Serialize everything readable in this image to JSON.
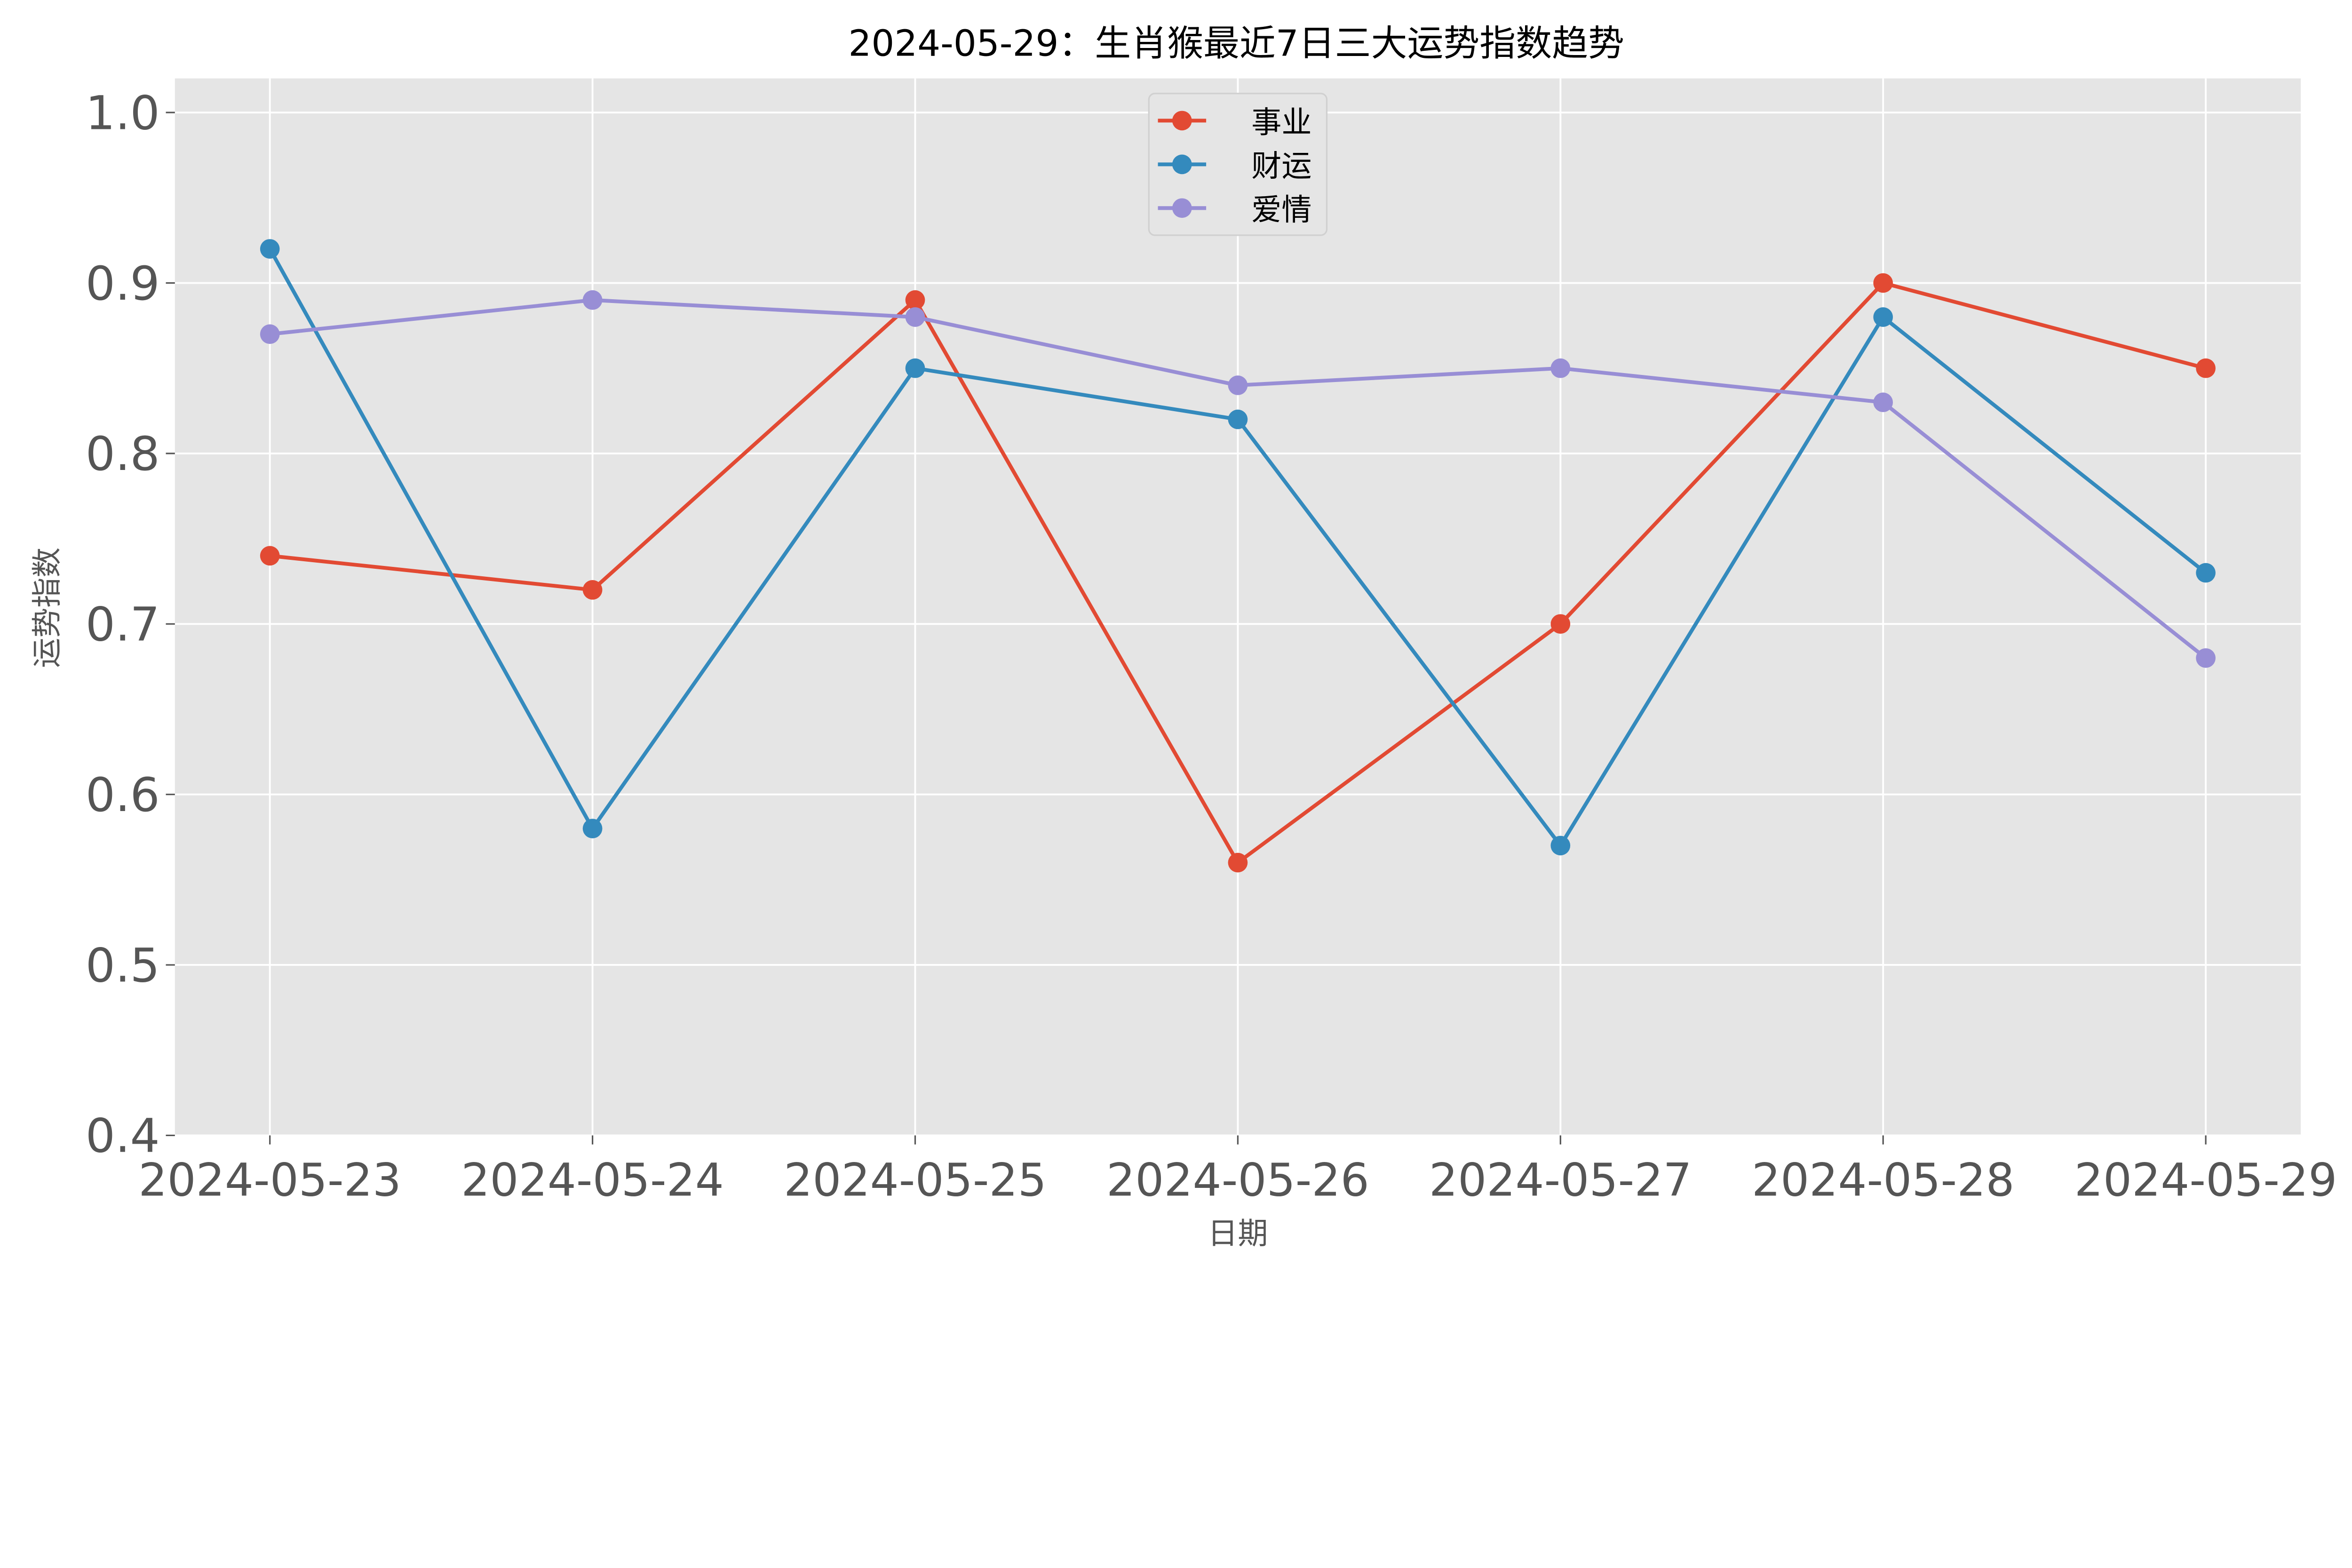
{
  "chart_data": {
    "type": "line",
    "title": "2024-05-29：生肖猴最近7日三大运势指数趋势",
    "xlabel": "日期",
    "ylabel": "运势指数",
    "categories": [
      "2024-05-23",
      "2024-05-24",
      "2024-05-25",
      "2024-05-26",
      "2024-05-27",
      "2024-05-28",
      "2024-05-29"
    ],
    "ylim": [
      0.4,
      1.02
    ],
    "yticks": [
      "0.4",
      "0.5",
      "0.6",
      "0.7",
      "0.8",
      "0.9",
      "1.0"
    ],
    "grid": true,
    "legend_position": "top-center",
    "background": "#e5e5e5",
    "series": [
      {
        "name": "事业",
        "color": "#e24a33",
        "values": [
          0.74,
          0.72,
          0.89,
          0.56,
          0.7,
          0.9,
          0.85
        ]
      },
      {
        "name": "财运",
        "color": "#348abd",
        "values": [
          0.92,
          0.58,
          0.85,
          0.82,
          0.57,
          0.88,
          0.73
        ]
      },
      {
        "name": "爱情",
        "color": "#988ed5",
        "values": [
          0.87,
          0.89,
          0.88,
          0.84,
          0.85,
          0.83,
          0.68
        ]
      }
    ]
  }
}
